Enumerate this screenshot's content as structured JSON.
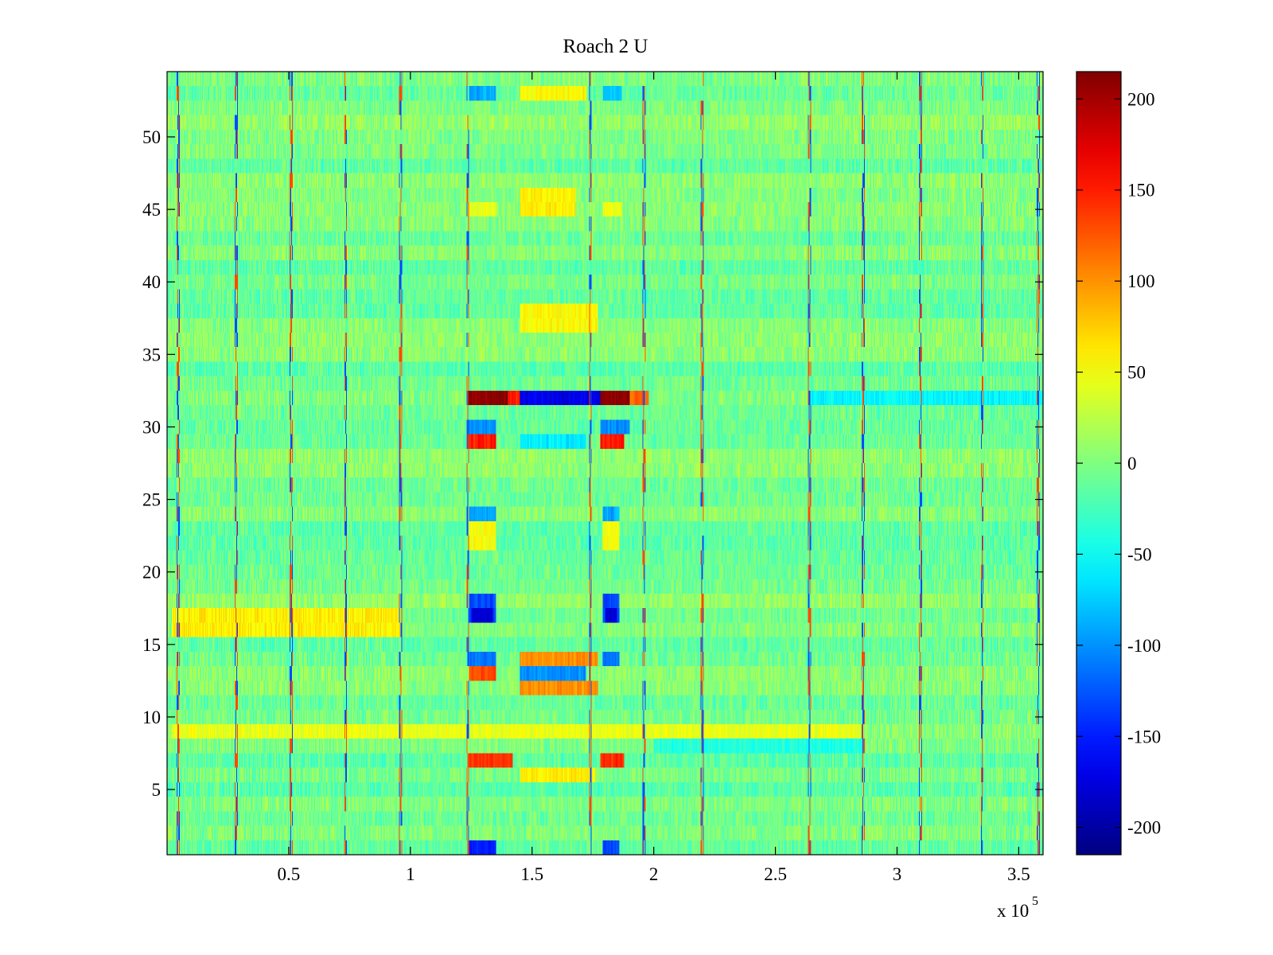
{
  "chart_data": {
    "type": "heatmap",
    "title": "Roach 2 U",
    "xlabel": "",
    "ylabel": "",
    "x_multiplier_label": "x 10",
    "x_multiplier_exponent": "5",
    "xlim": [
      0,
      3.6
    ],
    "ylim": [
      0.5,
      54.5
    ],
    "x_ticks": [
      0.5,
      1,
      1.5,
      2,
      2.5,
      3,
      3.5
    ],
    "x_tick_labels": [
      "0.5",
      "1",
      "1.5",
      "2",
      "2.5",
      "3",
      "3.5"
    ],
    "y_ticks": [
      5,
      10,
      15,
      20,
      25,
      30,
      35,
      40,
      45,
      50
    ],
    "y_tick_labels": [
      "5",
      "10",
      "15",
      "20",
      "25",
      "30",
      "35",
      "40",
      "45",
      "50"
    ],
    "rows": 54,
    "colormap": "jet",
    "clim": [
      -215,
      215
    ],
    "colorbar_ticks": [
      200,
      150,
      100,
      50,
      0,
      -50,
      -100,
      -150,
      -200
    ],
    "colorbar_tick_labels": [
      "200",
      "150",
      "100",
      "50",
      "0",
      "-50",
      "-100",
      "-150",
      "-200"
    ],
    "background_value": -5,
    "noise_amplitude": 22,
    "periodic_spike_x": [
      0.045,
      0.285,
      0.51,
      0.735,
      0.96,
      1.235,
      1.74,
      1.96,
      2.2,
      2.64,
      2.86,
      3.095,
      3.35,
      3.58
    ],
    "features": [
      {
        "rows": [
          32,
          32
        ],
        "x": [
          1.23,
          1.4
        ],
        "value": 210
      },
      {
        "rows": [
          32,
          32
        ],
        "x": [
          1.4,
          1.45
        ],
        "value": 150
      },
      {
        "rows": [
          32,
          32
        ],
        "x": [
          1.45,
          1.78
        ],
        "value": -170
      },
      {
        "rows": [
          32,
          32
        ],
        "x": [
          1.78,
          1.9
        ],
        "value": 210
      },
      {
        "rows": [
          32,
          32
        ],
        "x": [
          1.9,
          1.98
        ],
        "value": 120
      },
      {
        "rows": [
          30,
          30
        ],
        "x": [
          1.23,
          1.35
        ],
        "value": -100
      },
      {
        "rows": [
          30,
          30
        ],
        "x": [
          1.78,
          1.9
        ],
        "value": -100
      },
      {
        "rows": [
          29,
          29
        ],
        "x": [
          1.23,
          1.35
        ],
        "value": 150
      },
      {
        "rows": [
          29,
          29
        ],
        "x": [
          1.45,
          1.72
        ],
        "value": -60
      },
      {
        "rows": [
          29,
          29
        ],
        "x": [
          1.78,
          1.88
        ],
        "value": 150
      },
      {
        "rows": [
          24,
          24
        ],
        "x": [
          1.24,
          1.35
        ],
        "value": -90
      },
      {
        "rows": [
          24,
          24
        ],
        "x": [
          1.79,
          1.86
        ],
        "value": -90
      },
      {
        "rows": [
          22,
          23
        ],
        "x": [
          1.24,
          1.35
        ],
        "value": 50
      },
      {
        "rows": [
          22,
          23
        ],
        "x": [
          1.79,
          1.86
        ],
        "value": 50
      },
      {
        "rows": [
          17,
          18
        ],
        "x": [
          1.24,
          1.35
        ],
        "value": -130
      },
      {
        "rows": [
          17,
          17
        ],
        "x": [
          1.25,
          1.34
        ],
        "value": -180
      },
      {
        "rows": [
          17,
          18
        ],
        "x": [
          1.79,
          1.86
        ],
        "value": -130
      },
      {
        "rows": [
          17,
          17
        ],
        "x": [
          1.8,
          1.85
        ],
        "value": -180
      },
      {
        "rows": [
          16,
          17
        ],
        "x": [
          0.02,
          0.96
        ],
        "value": 60
      },
      {
        "rows": [
          14,
          14
        ],
        "x": [
          1.24,
          1.35
        ],
        "value": -110
      },
      {
        "rows": [
          14,
          14
        ],
        "x": [
          1.45,
          1.77
        ],
        "value": 100
      },
      {
        "rows": [
          14,
          14
        ],
        "x": [
          1.79,
          1.86
        ],
        "value": -110
      },
      {
        "rows": [
          13,
          13
        ],
        "x": [
          1.24,
          1.35
        ],
        "value": 130
      },
      {
        "rows": [
          13,
          13
        ],
        "x": [
          1.45,
          1.72
        ],
        "value": -100
      },
      {
        "rows": [
          12,
          12
        ],
        "x": [
          1.45,
          1.77
        ],
        "value": 100
      },
      {
        "rows": [
          7,
          7
        ],
        "x": [
          1.24,
          1.42
        ],
        "value": 140
      },
      {
        "rows": [
          7,
          7
        ],
        "x": [
          1.78,
          1.88
        ],
        "value": 140
      },
      {
        "rows": [
          6,
          6
        ],
        "x": [
          1.45,
          1.76
        ],
        "value": 60
      },
      {
        "rows": [
          45,
          46
        ],
        "x": [
          1.45,
          1.68
        ],
        "value": 60
      },
      {
        "rows": [
          45,
          45
        ],
        "x": [
          1.24,
          1.35
        ],
        "value": 45
      },
      {
        "rows": [
          45,
          45
        ],
        "x": [
          1.79,
          1.87
        ],
        "value": 45
      },
      {
        "rows": [
          37,
          38
        ],
        "x": [
          1.45,
          1.77
        ],
        "value": 55
      },
      {
        "rows": [
          53,
          53
        ],
        "x": [
          1.24,
          1.35
        ],
        "value": -90
      },
      {
        "rows": [
          53,
          53
        ],
        "x": [
          1.45,
          1.72
        ],
        "value": 55
      },
      {
        "rows": [
          53,
          53
        ],
        "x": [
          1.79,
          1.87
        ],
        "value": -80
      },
      {
        "rows": [
          1,
          1
        ],
        "x": [
          1.24,
          1.35
        ],
        "value": -150
      },
      {
        "rows": [
          1,
          1
        ],
        "x": [
          1.79,
          1.86
        ],
        "value": -130
      },
      {
        "rows": [
          9,
          9
        ],
        "x": [
          0.02,
          2.86
        ],
        "value": 45
      },
      {
        "rows": [
          8,
          8
        ],
        "x": [
          2.0,
          2.86
        ],
        "value": -40
      },
      {
        "rows": [
          32,
          32
        ],
        "x": [
          2.64,
          3.6
        ],
        "value": -55
      }
    ]
  }
}
